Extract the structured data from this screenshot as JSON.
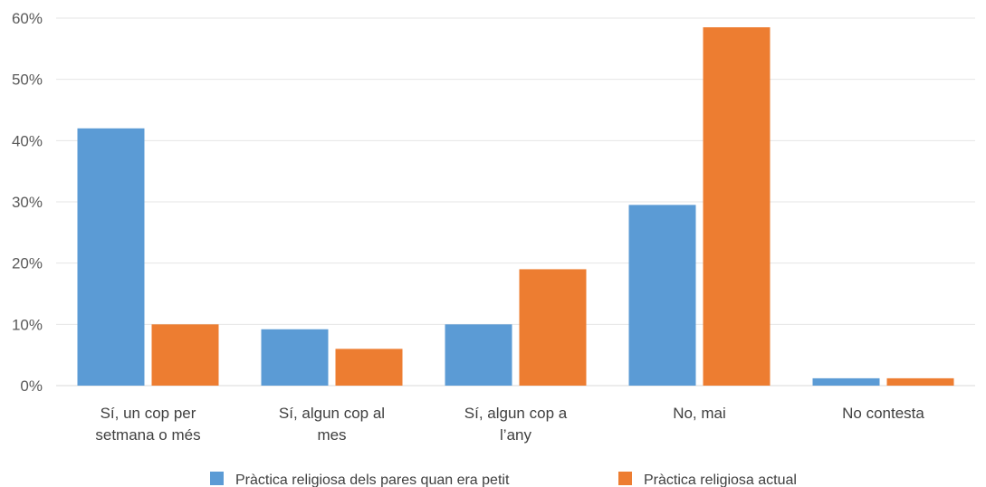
{
  "chart_data": {
    "type": "bar",
    "categories": [
      [
        "Sí, un cop per",
        "setmana o més"
      ],
      [
        "Sí, algun cop al",
        "mes"
      ],
      [
        "Sí, algun cop a",
        "l’any"
      ],
      [
        "No, mai"
      ],
      [
        "No contesta"
      ]
    ],
    "series": [
      {
        "name": "Pràctica religiosa dels pares quan era petit",
        "color": "#5B9BD5",
        "values": [
          42,
          9.2,
          10,
          29.5,
          1.2
        ]
      },
      {
        "name": "Pràctica religiosa actual",
        "color": "#ED7D31",
        "values": [
          10,
          6,
          19,
          58.5,
          1.2
        ]
      }
    ],
    "yticks": [
      "0%",
      "10%",
      "20%",
      "30%",
      "40%",
      "50%",
      "60%"
    ],
    "ylim": [
      0,
      60
    ],
    "grid": true,
    "legend": "bottom",
    "title": "",
    "xlabel": "",
    "ylabel": ""
  }
}
